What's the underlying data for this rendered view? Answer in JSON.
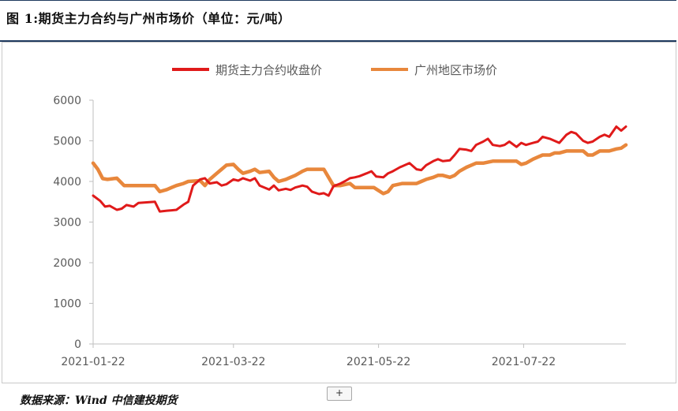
{
  "header": {
    "title": "图 1:期货主力合约与广州市场价（单位：元/吨）"
  },
  "footer": {
    "source": "数据来源：Wind  中信建投期货",
    "expand_label": "+"
  },
  "chart_data": {
    "type": "line",
    "title": "",
    "xlabel": "",
    "ylabel": "",
    "ylim": [
      0,
      6000
    ],
    "yticks": [
      "0",
      "1000",
      "2000",
      "3000",
      "4000",
      "5000",
      "6000"
    ],
    "xticks": [
      "2021-01-22",
      "2021-03-22",
      "2021-05-22",
      "2021-07-22"
    ],
    "grid": false,
    "legend_position": "top",
    "series": [
      {
        "name": "期货主力合约收盘价",
        "color": "#e01a1a",
        "points": [
          [
            "2021-01-22",
            3650
          ],
          [
            "2021-01-25",
            3520
          ],
          [
            "2021-01-27",
            3380
          ],
          [
            "2021-01-29",
            3400
          ],
          [
            "2021-02-01",
            3300
          ],
          [
            "2021-02-03",
            3330
          ],
          [
            "2021-02-05",
            3420
          ],
          [
            "2021-02-08",
            3380
          ],
          [
            "2021-02-10",
            3470
          ],
          [
            "2021-02-17",
            3500
          ],
          [
            "2021-02-19",
            3260
          ],
          [
            "2021-02-22",
            3280
          ],
          [
            "2021-02-24",
            3290
          ],
          [
            "2021-02-26",
            3300
          ],
          [
            "2021-03-01",
            3430
          ],
          [
            "2021-03-03",
            3500
          ],
          [
            "2021-03-05",
            3900
          ],
          [
            "2021-03-08",
            4050
          ],
          [
            "2021-03-10",
            4080
          ],
          [
            "2021-03-12",
            3950
          ],
          [
            "2021-03-15",
            3980
          ],
          [
            "2021-03-17",
            3900
          ],
          [
            "2021-03-19",
            3930
          ],
          [
            "2021-03-22",
            4050
          ],
          [
            "2021-03-24",
            4020
          ],
          [
            "2021-03-26",
            4080
          ],
          [
            "2021-03-29",
            4020
          ],
          [
            "2021-03-31",
            4080
          ],
          [
            "2021-04-02",
            3900
          ],
          [
            "2021-04-06",
            3800
          ],
          [
            "2021-04-08",
            3900
          ],
          [
            "2021-04-10",
            3780
          ],
          [
            "2021-04-13",
            3820
          ],
          [
            "2021-04-15",
            3790
          ],
          [
            "2021-04-17",
            3850
          ],
          [
            "2021-04-20",
            3900
          ],
          [
            "2021-04-22",
            3870
          ],
          [
            "2021-04-24",
            3750
          ],
          [
            "2021-04-27",
            3690
          ],
          [
            "2021-04-29",
            3710
          ],
          [
            "2021-05-01",
            3650
          ],
          [
            "2021-05-03",
            3880
          ],
          [
            "2021-05-06",
            3950
          ],
          [
            "2021-05-08",
            4010
          ],
          [
            "2021-05-10",
            4080
          ],
          [
            "2021-05-12",
            4100
          ],
          [
            "2021-05-14",
            4130
          ],
          [
            "2021-05-17",
            4200
          ],
          [
            "2021-05-19",
            4250
          ],
          [
            "2021-05-21",
            4120
          ],
          [
            "2021-05-24",
            4100
          ],
          [
            "2021-05-26",
            4200
          ],
          [
            "2021-05-28",
            4250
          ],
          [
            "2021-05-31",
            4350
          ],
          [
            "2021-06-02",
            4400
          ],
          [
            "2021-06-04",
            4450
          ],
          [
            "2021-06-07",
            4300
          ],
          [
            "2021-06-09",
            4280
          ],
          [
            "2021-06-11",
            4400
          ],
          [
            "2021-06-14",
            4500
          ],
          [
            "2021-06-16",
            4550
          ],
          [
            "2021-06-18",
            4500
          ],
          [
            "2021-06-21",
            4520
          ],
          [
            "2021-06-23",
            4650
          ],
          [
            "2021-06-25",
            4800
          ],
          [
            "2021-06-28",
            4780
          ],
          [
            "2021-06-30",
            4750
          ],
          [
            "2021-07-02",
            4900
          ],
          [
            "2021-07-05",
            4980
          ],
          [
            "2021-07-07",
            5050
          ],
          [
            "2021-07-09",
            4900
          ],
          [
            "2021-07-12",
            4870
          ],
          [
            "2021-07-14",
            4900
          ],
          [
            "2021-07-16",
            4980
          ],
          [
            "2021-07-19",
            4850
          ],
          [
            "2021-07-21",
            4950
          ],
          [
            "2021-07-23",
            4900
          ],
          [
            "2021-07-26",
            4950
          ],
          [
            "2021-07-28",
            4980
          ],
          [
            "2021-07-30",
            5100
          ],
          [
            "2021-08-02",
            5050
          ],
          [
            "2021-08-04",
            5000
          ],
          [
            "2021-08-06",
            4950
          ],
          [
            "2021-08-09",
            5150
          ],
          [
            "2021-08-11",
            5220
          ],
          [
            "2021-08-13",
            5180
          ],
          [
            "2021-08-16",
            5000
          ],
          [
            "2021-08-18",
            4950
          ],
          [
            "2021-08-20",
            4980
          ],
          [
            "2021-08-23",
            5100
          ],
          [
            "2021-08-25",
            5150
          ],
          [
            "2021-08-27",
            5100
          ],
          [
            "2021-08-30",
            5350
          ],
          [
            "2021-09-01",
            5250
          ],
          [
            "2021-09-03",
            5350
          ]
        ]
      },
      {
        "name": "广州地区市场价",
        "color": "#e8873c",
        "points": [
          [
            "2021-01-22",
            4450
          ],
          [
            "2021-01-24",
            4300
          ],
          [
            "2021-01-26",
            4070
          ],
          [
            "2021-01-28",
            4050
          ],
          [
            "2021-02-01",
            4080
          ],
          [
            "2021-02-04",
            3900
          ],
          [
            "2021-02-10",
            3900
          ],
          [
            "2021-02-17",
            3900
          ],
          [
            "2021-02-19",
            3750
          ],
          [
            "2021-02-22",
            3800
          ],
          [
            "2021-02-24",
            3850
          ],
          [
            "2021-02-26",
            3900
          ],
          [
            "2021-03-01",
            3950
          ],
          [
            "2021-03-03",
            4000
          ],
          [
            "2021-03-08",
            4020
          ],
          [
            "2021-03-10",
            3900
          ],
          [
            "2021-03-12",
            4050
          ],
          [
            "2021-03-15",
            4200
          ],
          [
            "2021-03-17",
            4300
          ],
          [
            "2021-03-19",
            4400
          ],
          [
            "2021-03-22",
            4420
          ],
          [
            "2021-03-24",
            4300
          ],
          [
            "2021-03-26",
            4200
          ],
          [
            "2021-03-29",
            4250
          ],
          [
            "2021-03-31",
            4300
          ],
          [
            "2021-04-02",
            4220
          ],
          [
            "2021-04-06",
            4250
          ],
          [
            "2021-04-08",
            4100
          ],
          [
            "2021-04-10",
            4000
          ],
          [
            "2021-04-13",
            4050
          ],
          [
            "2021-04-15",
            4100
          ],
          [
            "2021-04-17",
            4150
          ],
          [
            "2021-04-20",
            4250
          ],
          [
            "2021-04-22",
            4300
          ],
          [
            "2021-04-26",
            4300
          ],
          [
            "2021-04-29",
            4300
          ],
          [
            "2021-05-01",
            4100
          ],
          [
            "2021-05-03",
            3900
          ],
          [
            "2021-05-06",
            3900
          ],
          [
            "2021-05-10",
            3950
          ],
          [
            "2021-05-12",
            3850
          ],
          [
            "2021-05-17",
            3850
          ],
          [
            "2021-05-20",
            3850
          ],
          [
            "2021-05-24",
            3700
          ],
          [
            "2021-05-26",
            3750
          ],
          [
            "2021-05-28",
            3900
          ],
          [
            "2021-06-01",
            3950
          ],
          [
            "2021-06-04",
            3950
          ],
          [
            "2021-06-07",
            3950
          ],
          [
            "2021-06-09",
            4000
          ],
          [
            "2021-06-11",
            4050
          ],
          [
            "2021-06-14",
            4100
          ],
          [
            "2021-06-16",
            4150
          ],
          [
            "2021-06-18",
            4150
          ],
          [
            "2021-06-21",
            4100
          ],
          [
            "2021-06-23",
            4150
          ],
          [
            "2021-06-25",
            4250
          ],
          [
            "2021-06-28",
            4350
          ],
          [
            "2021-06-30",
            4400
          ],
          [
            "2021-07-02",
            4450
          ],
          [
            "2021-07-05",
            4450
          ],
          [
            "2021-07-09",
            4500
          ],
          [
            "2021-07-14",
            4500
          ],
          [
            "2021-07-19",
            4500
          ],
          [
            "2021-07-21",
            4420
          ],
          [
            "2021-07-23",
            4450
          ],
          [
            "2021-07-26",
            4550
          ],
          [
            "2021-07-28",
            4600
          ],
          [
            "2021-07-30",
            4650
          ],
          [
            "2021-08-02",
            4650
          ],
          [
            "2021-08-04",
            4700
          ],
          [
            "2021-08-06",
            4700
          ],
          [
            "2021-08-09",
            4750
          ],
          [
            "2021-08-13",
            4750
          ],
          [
            "2021-08-16",
            4750
          ],
          [
            "2021-08-18",
            4650
          ],
          [
            "2021-08-20",
            4650
          ],
          [
            "2021-08-23",
            4750
          ],
          [
            "2021-08-25",
            4750
          ],
          [
            "2021-08-27",
            4750
          ],
          [
            "2021-08-30",
            4800
          ],
          [
            "2021-09-01",
            4820
          ],
          [
            "2021-09-03",
            4900
          ]
        ]
      }
    ]
  }
}
